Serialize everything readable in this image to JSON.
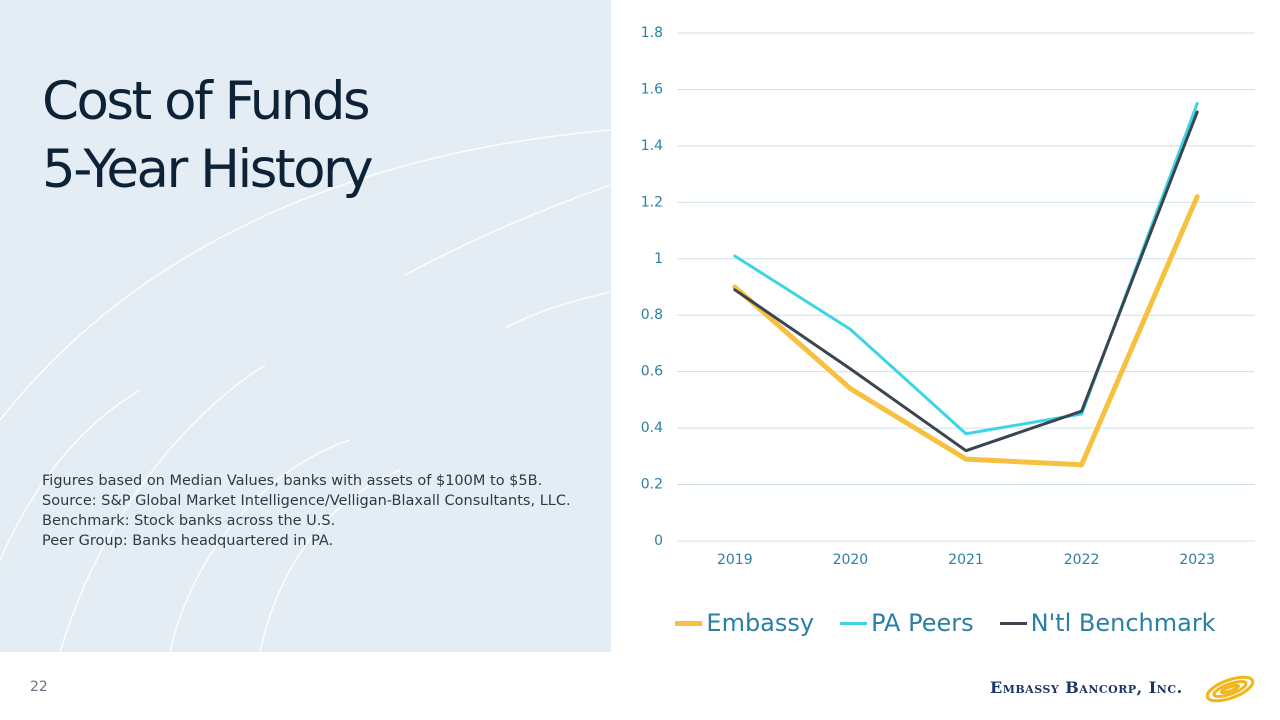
{
  "header": {
    "title_lines": [
      "Cost of Funds",
      "5-Year History"
    ]
  },
  "notes": [
    "Figures based on Median Values, banks with assets of $100M to $5B.",
    "Source: S&P Global Market Intelligence/Velligan-Blaxall Consultants,  LLC.",
    "Benchmark: Stock banks across the U.S.",
    "Peer Group: Banks headquartered  in PA."
  ],
  "footer": {
    "page_number": "22",
    "logo": "Embassy Bancorp, Inc."
  },
  "chart_data": {
    "type": "line",
    "categories": [
      "2019",
      "2020",
      "2021",
      "2022",
      "2023"
    ],
    "series": [
      {
        "name": "Embassy",
        "color": "#f6c140",
        "values": [
          0.9,
          0.54,
          0.29,
          0.27,
          1.22
        ]
      },
      {
        "name": "PA Peers",
        "color": "#3dd4e6",
        "values": [
          1.01,
          0.75,
          0.38,
          0.45,
          1.55
        ]
      },
      {
        "name": "N'tl Benchmark",
        "color": "#3a4550",
        "values": [
          0.89,
          0.61,
          0.32,
          0.46,
          1.52
        ]
      }
    ],
    "ylim": [
      0,
      1.8
    ],
    "yticks": [
      0,
      0.2,
      0.4,
      0.6,
      0.8,
      1,
      1.2,
      1.4,
      1.6,
      1.8
    ],
    "grid": true,
    "legend": "bottom"
  }
}
